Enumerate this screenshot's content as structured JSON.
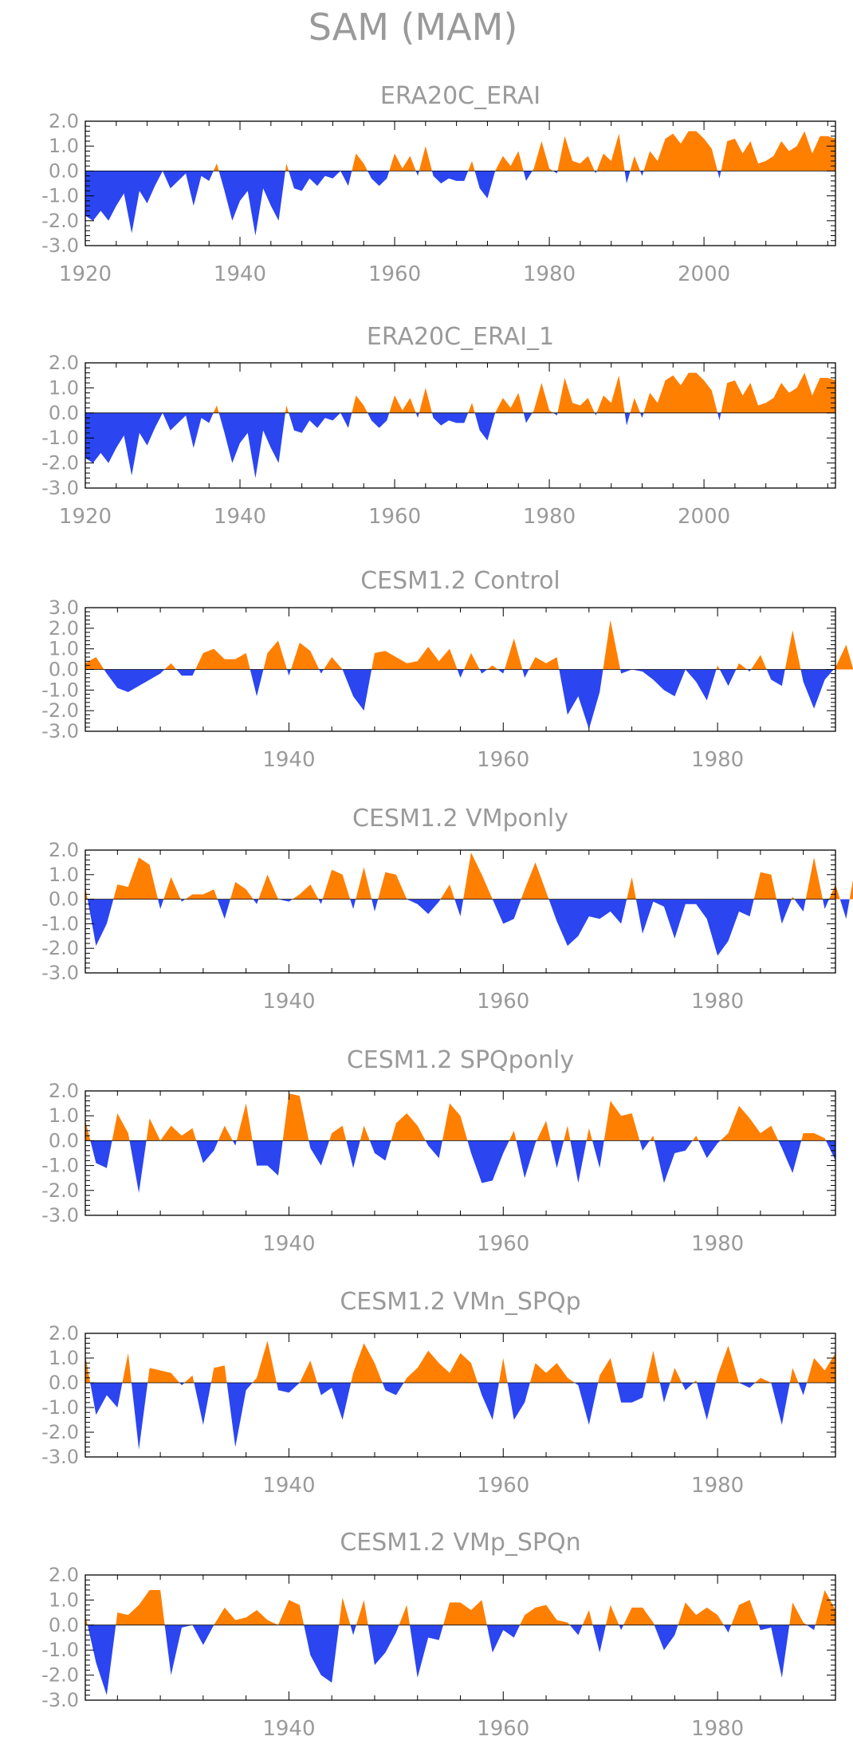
{
  "title": "SAM (MAM)",
  "colors": {
    "positive": "#ff7f00",
    "negative": "#2b45f0"
  },
  "chart_data": [
    {
      "type": "area",
      "title": "ERA20C_ERAI",
      "xlim": [
        1920,
        2017
      ],
      "ylim": [
        -3,
        2
      ],
      "xticks": [
        1920,
        1940,
        1960,
        1980,
        2000
      ],
      "yticks": [
        -3,
        -2,
        -1,
        0,
        1,
        2
      ],
      "x_start": 1920,
      "values": [
        -1.8,
        -2.0,
        -1.6,
        -2.0,
        -1.4,
        -0.9,
        -2.5,
        -0.8,
        -1.3,
        -0.6,
        0.0,
        -0.7,
        -0.4,
        -0.1,
        -1.4,
        -0.2,
        -0.4,
        0.3,
        -0.8,
        -2.0,
        -1.2,
        -0.8,
        -2.6,
        -0.7,
        -1.4,
        -2.0,
        0.3,
        -0.7,
        -0.8,
        -0.3,
        -0.6,
        -0.2,
        -0.3,
        0.0,
        -0.6,
        0.7,
        0.3,
        -0.3,
        -0.6,
        -0.3,
        0.7,
        0.1,
        0.6,
        -0.2,
        1.0,
        -0.2,
        -0.5,
        -0.3,
        -0.4,
        -0.4,
        0.4,
        -0.7,
        -1.1,
        0.0,
        0.6,
        0.2,
        0.8,
        -0.4,
        0.1,
        1.2,
        0.1,
        -0.1,
        1.4,
        0.4,
        0.3,
        0.6,
        -0.1,
        0.7,
        0.4,
        1.5,
        -0.5,
        0.6,
        -0.2,
        0.8,
        0.4,
        1.3,
        1.5,
        1.1,
        1.6,
        1.6,
        1.3,
        0.9,
        -0.3,
        1.2,
        1.3,
        0.7,
        1.2,
        0.3,
        0.4,
        0.6,
        1.2,
        0.8,
        1.0,
        1.6,
        0.7,
        1.4,
        1.4,
        1.3
      ]
    },
    {
      "type": "area",
      "title": "ERA20C_ERAI_1",
      "xlim": [
        1920,
        2017
      ],
      "ylim": [
        -3,
        2
      ],
      "xticks": [
        1920,
        1940,
        1960,
        1980,
        2000
      ],
      "yticks": [
        -3,
        -2,
        -1,
        0,
        1,
        2
      ],
      "x_start": 1920,
      "values": [
        -1.8,
        -2.0,
        -1.6,
        -2.0,
        -1.4,
        -0.9,
        -2.5,
        -0.8,
        -1.3,
        -0.6,
        0.0,
        -0.7,
        -0.4,
        -0.1,
        -1.4,
        -0.2,
        -0.4,
        0.3,
        -0.8,
        -2.0,
        -1.2,
        -0.8,
        -2.6,
        -0.7,
        -1.4,
        -2.0,
        0.3,
        -0.7,
        -0.8,
        -0.3,
        -0.6,
        -0.2,
        -0.3,
        0.0,
        -0.6,
        0.7,
        0.3,
        -0.3,
        -0.6,
        -0.3,
        0.7,
        0.1,
        0.6,
        -0.2,
        1.0,
        -0.2,
        -0.5,
        -0.3,
        -0.4,
        -0.4,
        0.4,
        -0.7,
        -1.1,
        0.0,
        0.6,
        0.2,
        0.8,
        -0.4,
        0.1,
        1.2,
        0.1,
        -0.1,
        1.4,
        0.4,
        0.3,
        0.6,
        -0.1,
        0.7,
        0.4,
        1.5,
        -0.5,
        0.6,
        -0.2,
        0.8,
        0.4,
        1.3,
        1.5,
        1.1,
        1.6,
        1.6,
        1.3,
        0.9,
        -0.3,
        1.2,
        1.3,
        0.7,
        1.2,
        0.3,
        0.4,
        0.6,
        1.2,
        0.8,
        1.0,
        1.6,
        0.7,
        1.4,
        1.4,
        1.3
      ]
    },
    {
      "type": "area",
      "title": "CESM1.2 Control",
      "xlim": [
        1921,
        1991
      ],
      "ylim": [
        -3,
        3
      ],
      "xticks": [
        1940,
        1960,
        1980
      ],
      "yticks": [
        -3,
        -2,
        -1,
        0,
        1,
        2,
        3
      ],
      "x_start": 1921,
      "values": [
        0.3,
        0.6,
        -0.2,
        -0.9,
        -1.1,
        -0.8,
        -0.5,
        -0.2,
        0.3,
        -0.3,
        -0.3,
        0.8,
        1.0,
        0.5,
        0.5,
        0.8,
        -1.3,
        0.8,
        1.4,
        -0.3,
        1.3,
        0.9,
        -0.2,
        0.6,
        0.0,
        -1.3,
        -2.0,
        0.8,
        0.9,
        0.6,
        0.3,
        0.4,
        1.1,
        0.4,
        1.0,
        -0.4,
        0.8,
        -0.2,
        0.2,
        -0.2,
        1.5,
        -0.4,
        0.6,
        0.3,
        0.6,
        -2.2,
        -1.3,
        -2.9,
        -1.1,
        2.4,
        -0.2,
        0.0,
        -0.1,
        -0.5,
        -1.0,
        -1.3,
        0.0,
        -0.6,
        -1.5,
        0.2,
        -0.8,
        0.3,
        -0.1,
        0.7,
        -0.5,
        -0.8,
        1.9,
        -0.6,
        -1.9,
        -0.5,
        0.1,
        1.2,
        -0.6
      ]
    },
    {
      "type": "area",
      "title": "CESM1.2 VMponly",
      "xlim": [
        1921,
        1991
      ],
      "ylim": [
        -3,
        2
      ],
      "xticks": [
        1940,
        1960,
        1980
      ],
      "yticks": [
        -3,
        -2,
        -1,
        0,
        1,
        2
      ],
      "x_start": 1921,
      "values": [
        0.5,
        -1.9,
        -1.0,
        0.6,
        0.5,
        1.7,
        1.4,
        -0.4,
        0.9,
        -0.1,
        0.2,
        0.2,
        0.4,
        -0.8,
        0.7,
        0.4,
        -0.2,
        1.0,
        0.0,
        -0.1,
        0.2,
        0.6,
        -0.2,
        1.2,
        1.0,
        -0.4,
        1.3,
        -0.5,
        1.1,
        1.0,
        0.0,
        -0.2,
        -0.6,
        -0.1,
        0.6,
        -0.7,
        1.9,
        1.0,
        0.0,
        -1.0,
        -0.8,
        0.4,
        1.5,
        0.3,
        -0.9,
        -1.9,
        -1.5,
        -0.7,
        -0.8,
        -0.5,
        -1.0,
        0.9,
        -1.4,
        -0.1,
        -0.3,
        -1.6,
        -0.2,
        -0.2,
        -0.8,
        -2.3,
        -1.7,
        -0.5,
        -0.7,
        1.1,
        1.0,
        -1.0,
        0.1,
        -0.5,
        1.7,
        -0.4,
        0.6,
        -0.8,
        1.7
      ]
    },
    {
      "type": "area",
      "title": "CESM1.2 SPQponly",
      "xlim": [
        1921,
        1991
      ],
      "ylim": [
        -3,
        2
      ],
      "xticks": [
        1940,
        1960,
        1980
      ],
      "yticks": [
        -3,
        -2,
        -1,
        0,
        1,
        2
      ],
      "x_start": 1921,
      "values": [
        0.8,
        -0.9,
        -1.1,
        1.1,
        0.3,
        -2.1,
        0.9,
        0.0,
        0.6,
        0.2,
        0.5,
        -0.9,
        -0.4,
        0.6,
        -0.2,
        1.5,
        -1.0,
        -1.0,
        -1.4,
        1.9,
        1.8,
        -0.3,
        -1.0,
        0.3,
        0.6,
        -1.1,
        0.6,
        -0.5,
        -0.8,
        0.7,
        1.1,
        0.6,
        -0.2,
        -0.7,
        1.5,
        1.0,
        -0.5,
        -1.7,
        -1.6,
        -0.5,
        0.4,
        -1.5,
        -0.1,
        0.8,
        -1.1,
        0.6,
        -1.7,
        0.5,
        -1.1,
        1.6,
        1.0,
        1.1,
        -0.4,
        0.2,
        -1.7,
        -0.5,
        -0.4,
        0.2,
        -0.7,
        -0.1,
        0.3,
        1.4,
        0.9,
        0.3,
        0.6,
        -0.3,
        -1.3,
        0.3,
        0.3,
        0.1,
        -0.8
      ]
    },
    {
      "type": "area",
      "title": "CESM1.2 VMn_SPQp",
      "xlim": [
        1921,
        1991
      ],
      "ylim": [
        -3,
        2
      ],
      "xticks": [
        1940,
        1960,
        1980
      ],
      "yticks": [
        -3,
        -2,
        -1,
        0,
        1,
        2
      ],
      "x_start": 1921,
      "values": [
        1.1,
        -1.3,
        -0.5,
        -1.0,
        1.2,
        -2.7,
        0.6,
        0.5,
        0.4,
        -0.1,
        0.3,
        -1.7,
        0.6,
        0.7,
        -2.6,
        -0.3,
        0.2,
        1.7,
        -0.3,
        -0.4,
        0.0,
        0.9,
        -0.5,
        -0.2,
        -1.5,
        0.4,
        1.6,
        0.8,
        -0.3,
        -0.5,
        0.2,
        0.6,
        1.3,
        0.8,
        0.4,
        1.2,
        0.8,
        -0.5,
        -1.5,
        1.0,
        -1.5,
        -0.8,
        0.8,
        0.4,
        0.8,
        0.2,
        -0.1,
        -1.7,
        0.3,
        1.0,
        -0.8,
        -0.8,
        -0.6,
        1.3,
        -0.8,
        0.6,
        -0.3,
        0.1,
        -1.5,
        0.3,
        1.5,
        0.0,
        -0.2,
        0.2,
        0.0,
        -1.7,
        0.6,
        -0.5,
        1.0,
        0.5,
        1.2
      ]
    },
    {
      "type": "area",
      "title": "CESM1.2 VMp_SPQn",
      "xlim": [
        1921,
        1991
      ],
      "ylim": [
        -3,
        2
      ],
      "xticks": [
        1940,
        1960,
        1980
      ],
      "yticks": [
        -3,
        -2,
        -1,
        0,
        1,
        2
      ],
      "x_start": 1921,
      "values": [
        0.4,
        -1.5,
        -2.8,
        0.5,
        0.4,
        0.8,
        1.4,
        1.4,
        -2.0,
        -0.1,
        0.0,
        -0.8,
        0.0,
        0.7,
        0.2,
        0.3,
        0.6,
        0.2,
        0.0,
        1.0,
        0.8,
        -1.2,
        -2.0,
        -2.3,
        1.1,
        -0.4,
        1.0,
        -1.6,
        -1.1,
        -0.3,
        0.8,
        -2.1,
        -0.5,
        -0.6,
        0.9,
        0.9,
        0.6,
        1.0,
        -1.1,
        -0.2,
        -0.5,
        0.4,
        0.7,
        0.8,
        0.2,
        0.1,
        -0.4,
        0.6,
        -1.1,
        0.8,
        -0.2,
        0.7,
        0.7,
        0.1,
        -1.0,
        -0.4,
        0.9,
        0.4,
        0.7,
        0.4,
        -0.3,
        0.8,
        1.0,
        -0.2,
        -0.1,
        -2.1,
        0.9,
        0.1,
        -0.2,
        1.4,
        0.6
      ]
    }
  ]
}
